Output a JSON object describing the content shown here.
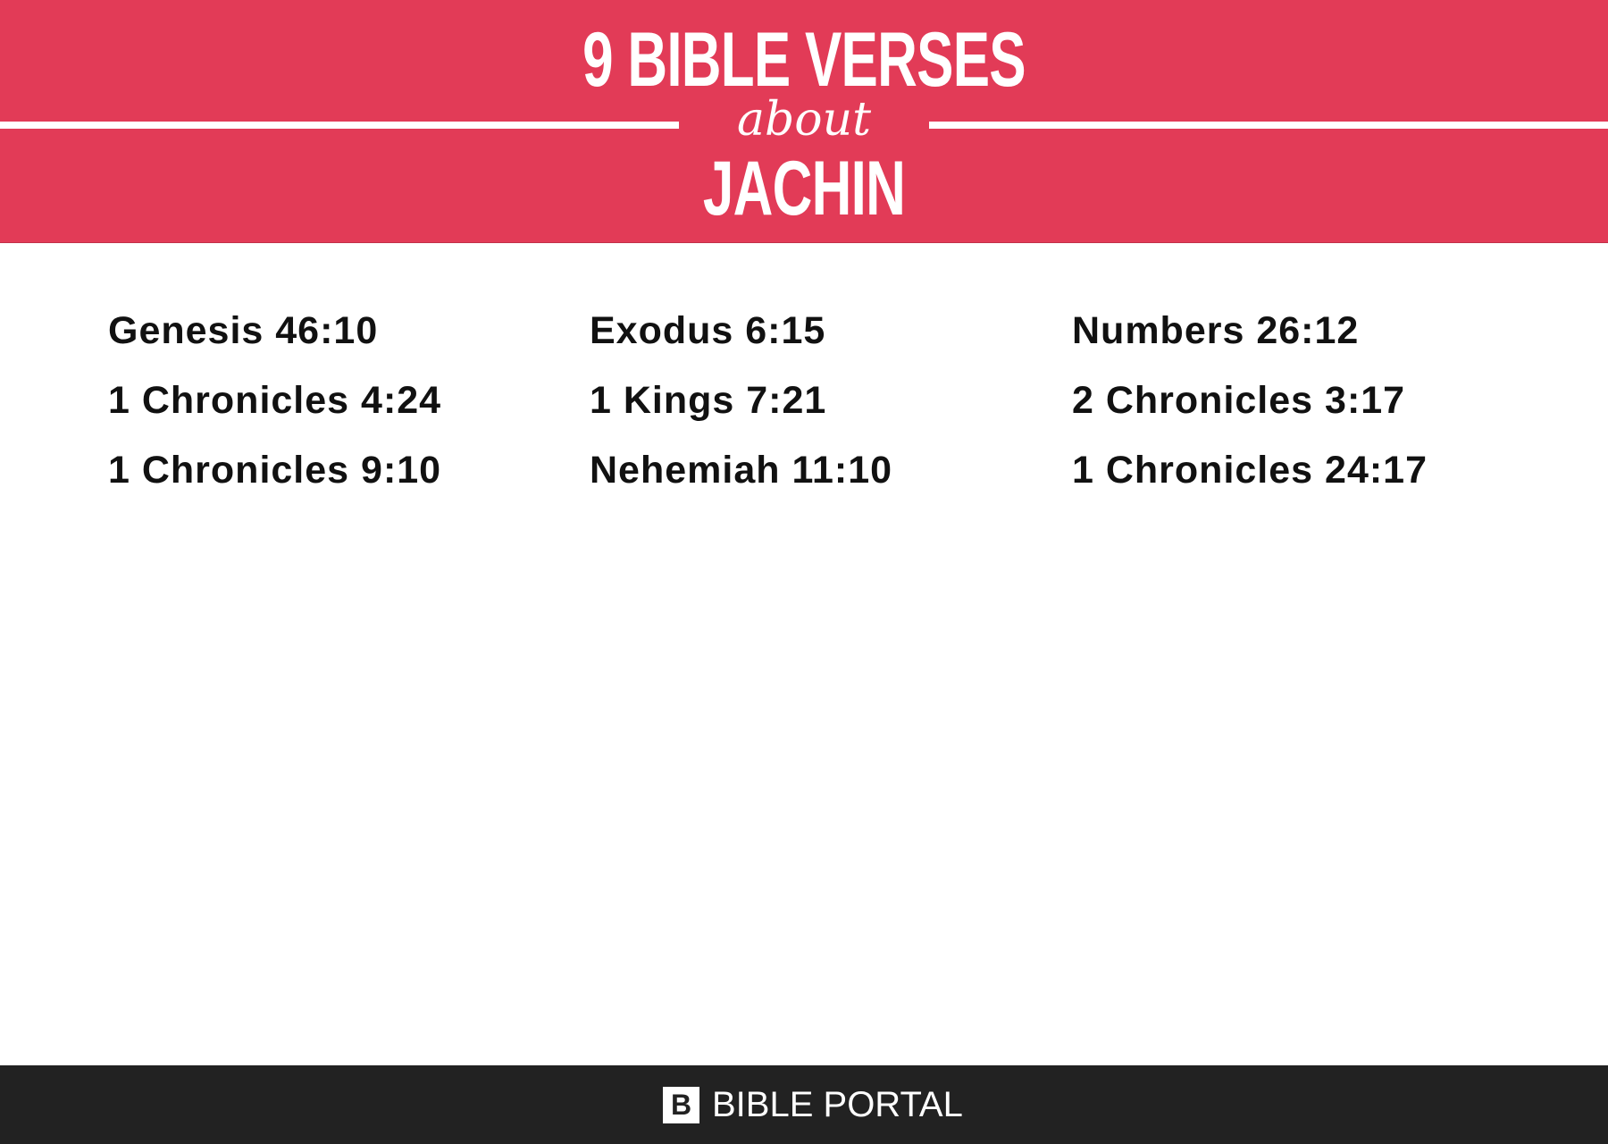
{
  "header": {
    "title_line1": "9 BIBLE VERSES",
    "title_line2": "about",
    "title_line3": "JACHIN",
    "background_color": "#e23b57"
  },
  "verses": [
    "Genesis 46:10",
    "Exodus 6:15",
    "Numbers 26:12",
    "1 Chronicles 4:24",
    "1 Kings 7:21",
    "2 Chronicles 3:17",
    "1 Chronicles 9:10",
    "Nehemiah 11:10",
    "1 Chronicles 24:17"
  ],
  "footer": {
    "logo_letter": "B",
    "brand": "BIBLE PORTAL",
    "background_color": "#222222"
  }
}
